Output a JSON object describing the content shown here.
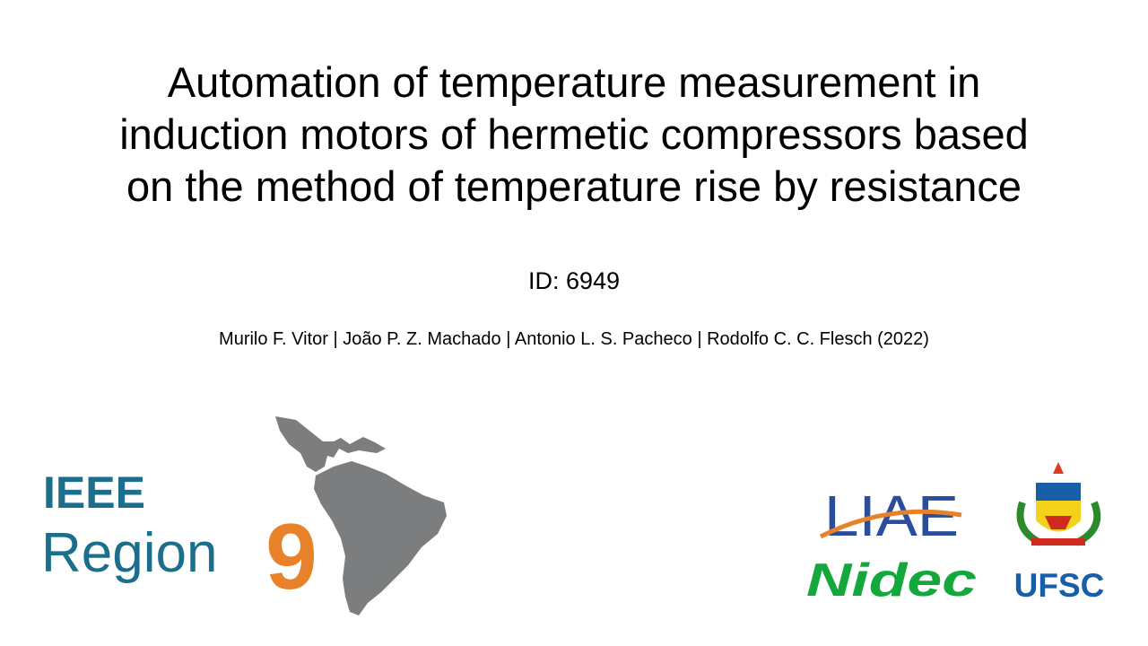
{
  "slide": {
    "title_lines": [
      "Automation of temperature measurement in",
      "induction motors of hermetic compressors based",
      "on the method of temperature rise by resistance"
    ],
    "id": "ID: 6949",
    "authors": "Murilo F. Vitor | João P. Z. Machado | Antonio L. S. Pacheco | Rodolfo C. C. Flesch (2022)",
    "logos": {
      "ieee": "IEEE",
      "region": "Region",
      "number": "9",
      "liae": "LIAE",
      "nidec": "Nidec",
      "ufsc": "UFSC"
    }
  }
}
